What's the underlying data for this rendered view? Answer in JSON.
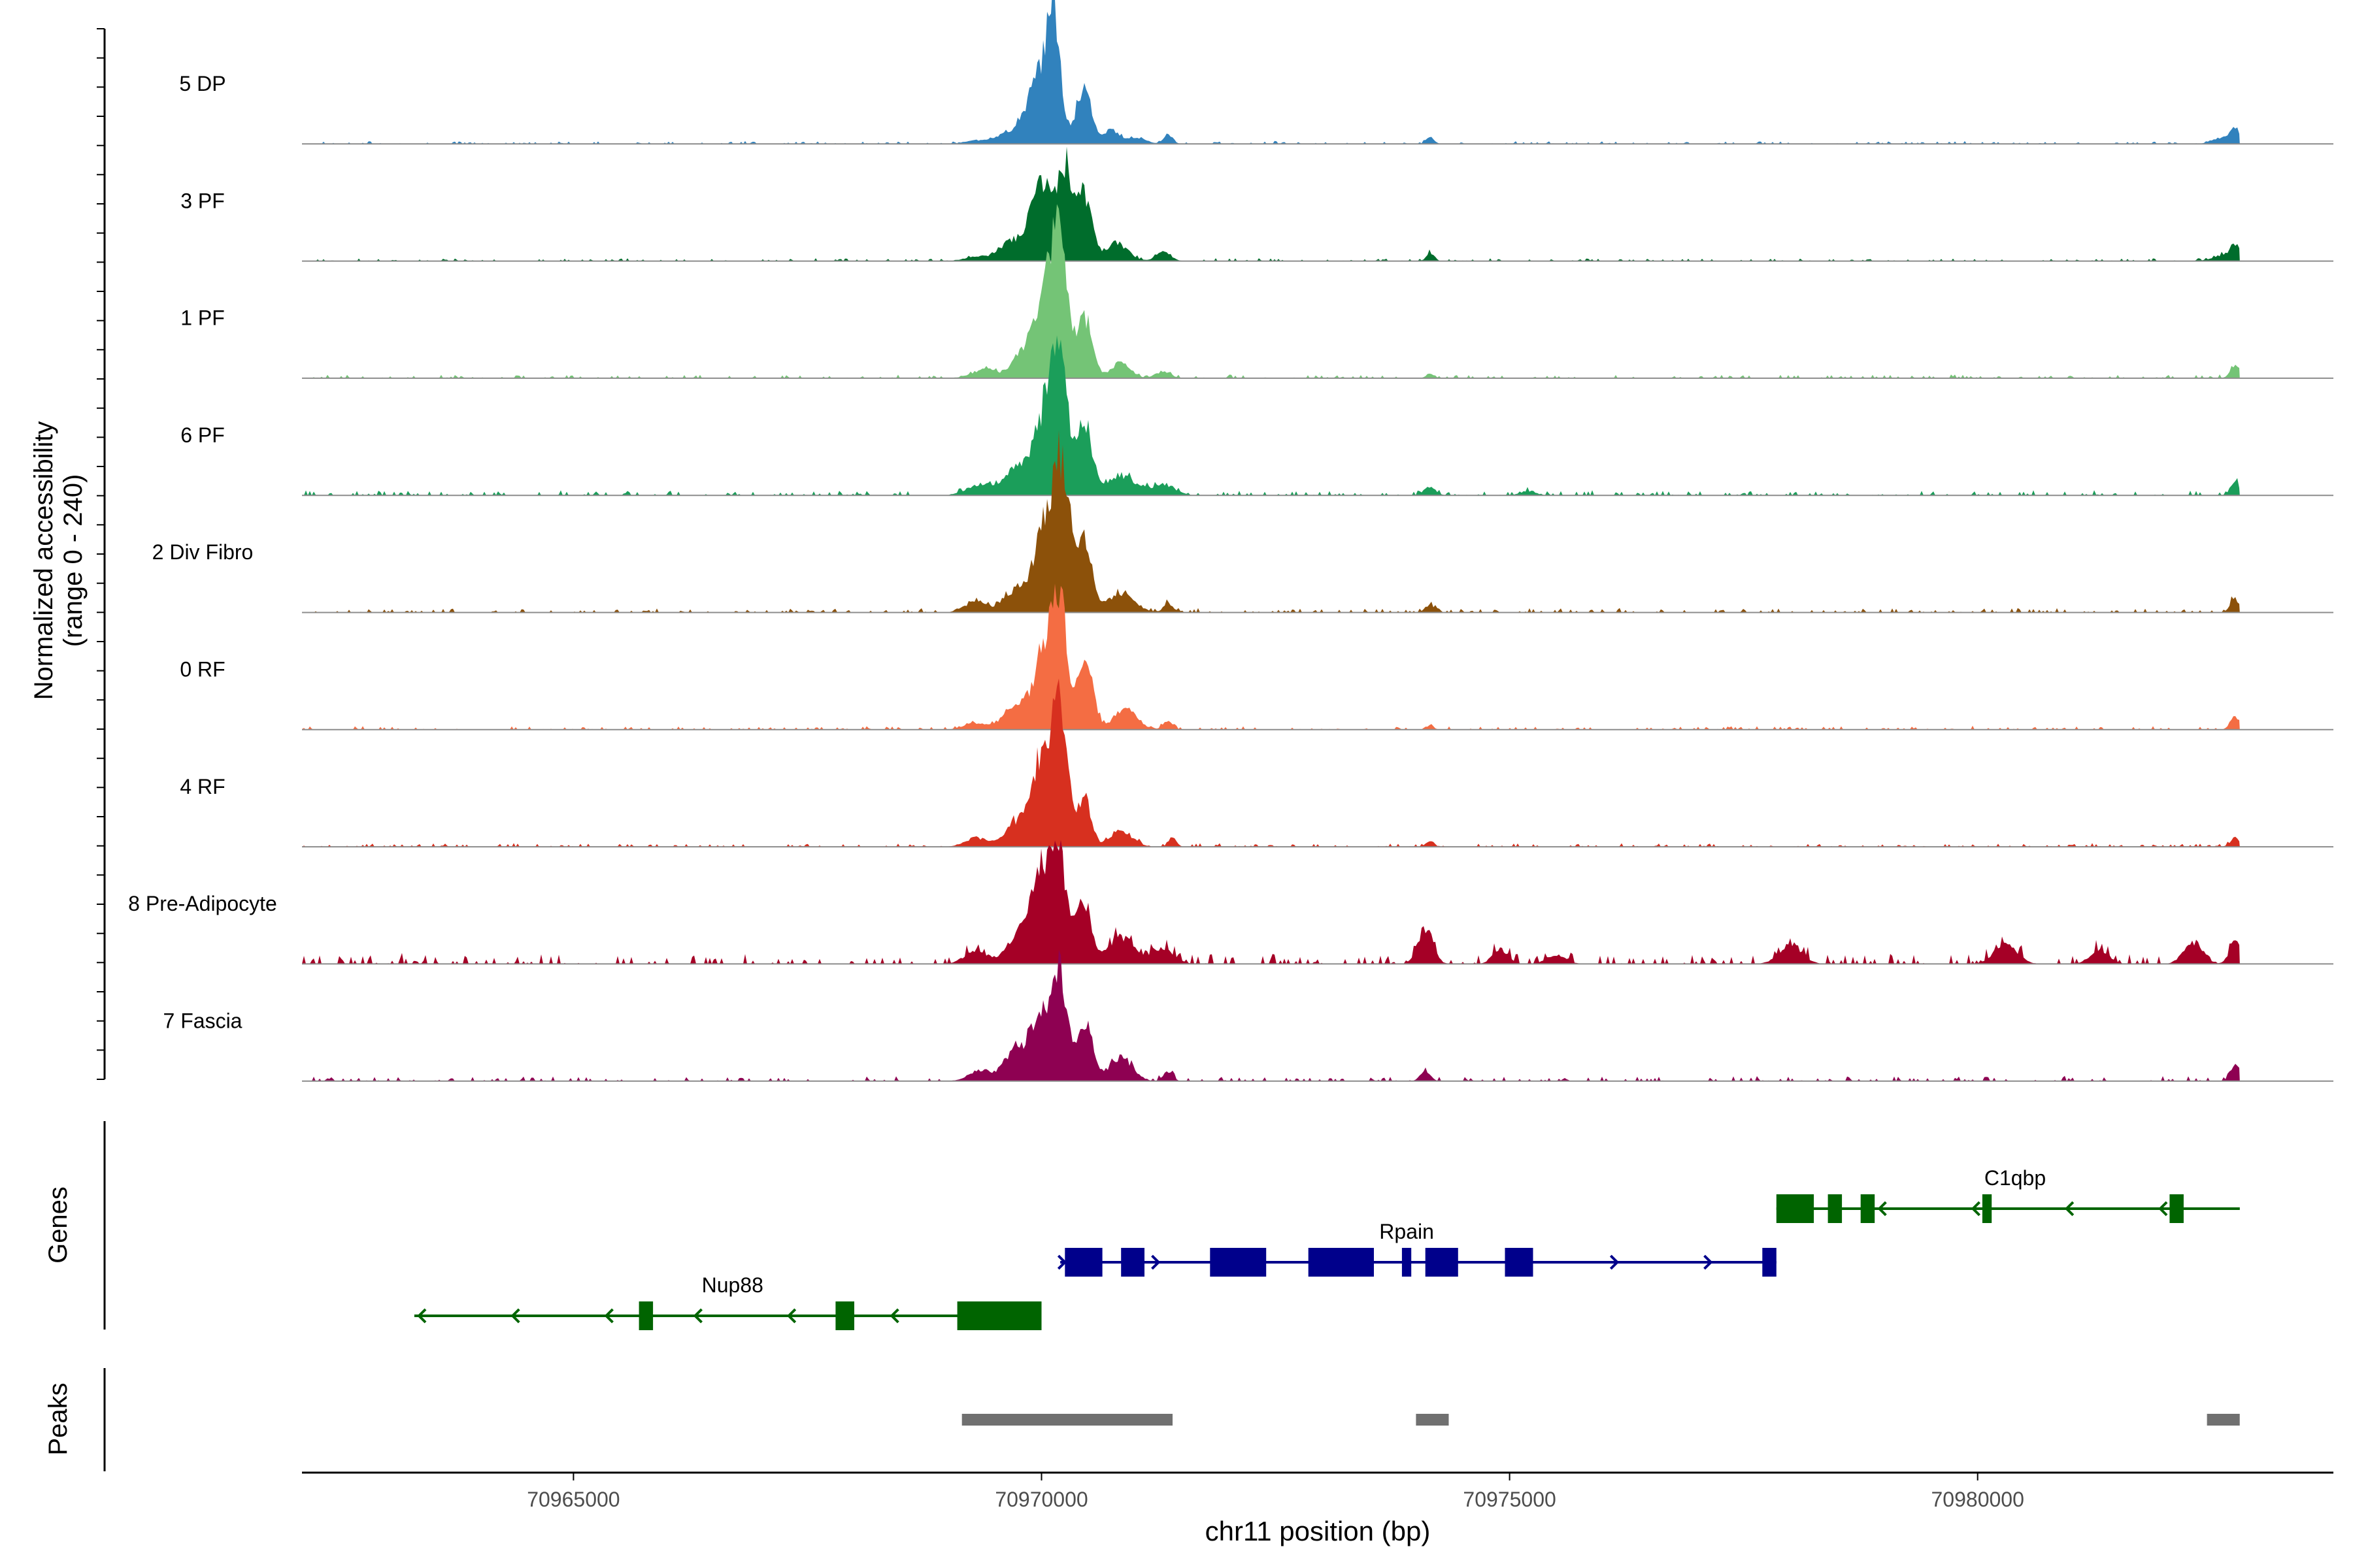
{
  "chart_data": {
    "type": "area",
    "title": "",
    "chromosome": "chr11",
    "xlabel": "chr11 position (bp)",
    "xlim": [
      70962100,
      70983800
    ],
    "xticks": [
      70965000,
      70970000,
      70975000,
      70980000
    ],
    "xtick_labels": [
      "70965000",
      "70970000",
      "70975000",
      "70980000"
    ],
    "region_end": 70982800,
    "coverage_ylabel_line1": "Normalized accessibility",
    "coverage_ylabel_line2": "(range 0 - 240)",
    "ylim": [
      0,
      240
    ],
    "tracks": [
      {
        "name": "5 DP",
        "color": "#3182BD",
        "peaks": [
          [
            70969300,
            8,
            120
          ],
          [
            70969600,
            20,
            100
          ],
          [
            70969800,
            35,
            80
          ],
          [
            70970000,
            150,
            120
          ],
          [
            70970130,
            230,
            70
          ],
          [
            70970450,
            130,
            80
          ],
          [
            70970750,
            30,
            80
          ],
          [
            70971000,
            15,
            100
          ],
          [
            70971350,
            22,
            50
          ],
          [
            70974150,
            18,
            40
          ],
          [
            70982600,
            12,
            100
          ],
          [
            70982750,
            35,
            50
          ]
        ],
        "noise": 4
      },
      {
        "name": "3 PF",
        "color": "#006D2C",
        "peaks": [
          [
            70969300,
            10,
            120
          ],
          [
            70969650,
            40,
            120
          ],
          [
            70970000,
            170,
            130
          ],
          [
            70970250,
            190,
            80
          ],
          [
            70970450,
            150,
            80
          ],
          [
            70970800,
            40,
            120
          ],
          [
            70971300,
            20,
            80
          ],
          [
            70974150,
            20,
            40
          ],
          [
            70982600,
            12,
            100
          ],
          [
            70982750,
            38,
            50
          ]
        ],
        "noise": 4
      },
      {
        "name": "1 PF",
        "color": "#74C476",
        "peaks": [
          [
            70969400,
            20,
            140
          ],
          [
            70969750,
            30,
            80
          ],
          [
            70970050,
            190,
            150
          ],
          [
            70970200,
            230,
            80
          ],
          [
            70970470,
            130,
            80
          ],
          [
            70970850,
            35,
            100
          ],
          [
            70971300,
            15,
            80
          ],
          [
            70974150,
            12,
            40
          ],
          [
            70982750,
            30,
            50
          ]
        ],
        "noise": 5
      },
      {
        "name": "6 PF",
        "color": "#1B9E5A",
        "peaks": [
          [
            70969350,
            25,
            140
          ],
          [
            70969700,
            50,
            120
          ],
          [
            70970050,
            190,
            140
          ],
          [
            70970200,
            215,
            80
          ],
          [
            70970460,
            160,
            80
          ],
          [
            70970850,
            45,
            150
          ],
          [
            70971300,
            25,
            120
          ],
          [
            70974150,
            20,
            60
          ],
          [
            70975200,
            10,
            80
          ],
          [
            70982750,
            30,
            50
          ]
        ],
        "noise": 7
      },
      {
        "name": "2 Div Fibro",
        "color": "#8C510A",
        "peaks": [
          [
            70969300,
            25,
            120
          ],
          [
            70969700,
            45,
            110
          ],
          [
            70970050,
            200,
            130
          ],
          [
            70970220,
            260,
            80
          ],
          [
            70970450,
            170,
            80
          ],
          [
            70970850,
            45,
            140
          ],
          [
            70971350,
            20,
            50
          ],
          [
            70974150,
            18,
            50
          ],
          [
            70982750,
            30,
            50
          ]
        ],
        "noise": 6
      },
      {
        "name": "0 RF",
        "color": "#F46D43",
        "peaks": [
          [
            70969300,
            15,
            120
          ],
          [
            70969700,
            50,
            110
          ],
          [
            70970050,
            190,
            130
          ],
          [
            70970200,
            210,
            80
          ],
          [
            70970470,
            150,
            80
          ],
          [
            70970900,
            50,
            120
          ],
          [
            70971350,
            20,
            50
          ],
          [
            70974150,
            10,
            40
          ],
          [
            70982750,
            28,
            50
          ]
        ],
        "noise": 5
      },
      {
        "name": "4 RF",
        "color": "#D7301F",
        "peaks": [
          [
            70969300,
            20,
            120
          ],
          [
            70969700,
            45,
            110
          ],
          [
            70970020,
            210,
            130
          ],
          [
            70970200,
            240,
            80
          ],
          [
            70970460,
            110,
            70
          ],
          [
            70970850,
            35,
            120
          ],
          [
            70971400,
            25,
            40
          ],
          [
            70974150,
            15,
            40
          ],
          [
            70982750,
            20,
            50
          ]
        ],
        "noise": 5
      },
      {
        "name": "8 Pre-Adipocyte",
        "color": "#A50026",
        "peaks": [
          [
            70969300,
            30,
            120
          ],
          [
            70969700,
            40,
            110
          ],
          [
            70970000,
            220,
            140
          ],
          [
            70970200,
            170,
            80
          ],
          [
            70970450,
            140,
            80
          ],
          [
            70970850,
            60,
            140
          ],
          [
            70971300,
            30,
            120
          ],
          [
            70974100,
            80,
            80
          ],
          [
            70974900,
            35,
            80
          ],
          [
            70975500,
            20,
            100
          ],
          [
            70978000,
            45,
            120
          ],
          [
            70980300,
            45,
            120
          ],
          [
            70981300,
            30,
            100
          ],
          [
            70982300,
            50,
            100
          ],
          [
            70982750,
            50,
            60
          ]
        ],
        "noise": 14
      },
      {
        "name": "7 Fascia",
        "color": "#8E0152",
        "peaks": [
          [
            70969350,
            25,
            120
          ],
          [
            70969700,
            60,
            110
          ],
          [
            70970000,
            150,
            130
          ],
          [
            70970200,
            200,
            80
          ],
          [
            70970470,
            130,
            80
          ],
          [
            70970850,
            55,
            120
          ],
          [
            70971350,
            20,
            50
          ],
          [
            70974100,
            25,
            50
          ],
          [
            70982750,
            40,
            50
          ]
        ],
        "noise": 7
      }
    ],
    "genes_label": "Genes",
    "genes": [
      {
        "name": "Nup88",
        "strand": "-",
        "color": "#006400",
        "row": 3,
        "start": 70963300,
        "end": 70970000,
        "label_pos": 70966700,
        "exons": [
          [
            70965700,
            70965850
          ],
          [
            70967800,
            70968000
          ],
          [
            70969100,
            70970000
          ]
        ],
        "arrows": [
          70963350,
          70964350,
          70965350,
          70966300,
          70967300,
          70968400
        ]
      },
      {
        "name": "Rpain",
        "strand": "+",
        "color": "#00008B",
        "row": 2,
        "start": 70970200,
        "end": 70977850,
        "label_pos": 70973900,
        "exons": [
          [
            70970250,
            70970650
          ],
          [
            70970850,
            70971100
          ],
          [
            70971800,
            70972400
          ],
          [
            70972850,
            70973550
          ],
          [
            70973850,
            70973950
          ],
          [
            70974100,
            70974450
          ],
          [
            70974950,
            70975250
          ],
          [
            70977700,
            70977850
          ]
        ],
        "arrows": [
          70970250,
          70971250,
          70975150,
          70976150,
          70977150
        ]
      },
      {
        "name": "C1qbp",
        "strand": "-",
        "color": "#006400",
        "row": 1,
        "start": 70977850,
        "end": 70982800,
        "label_pos": 70980400,
        "exons": [
          [
            70977850,
            70978250
          ],
          [
            70978400,
            70978550
          ],
          [
            70978750,
            70978900
          ],
          [
            70980050,
            70980150
          ],
          [
            70982050,
            70982200
          ]
        ],
        "arrows": [
          70978950,
          70979950,
          70980950,
          70981950
        ]
      }
    ],
    "peaks_label": "Peaks",
    "peak_regions": [
      [
        70969150,
        70971400
      ],
      [
        70974000,
        70974350
      ],
      [
        70982450,
        70982800
      ]
    ]
  }
}
